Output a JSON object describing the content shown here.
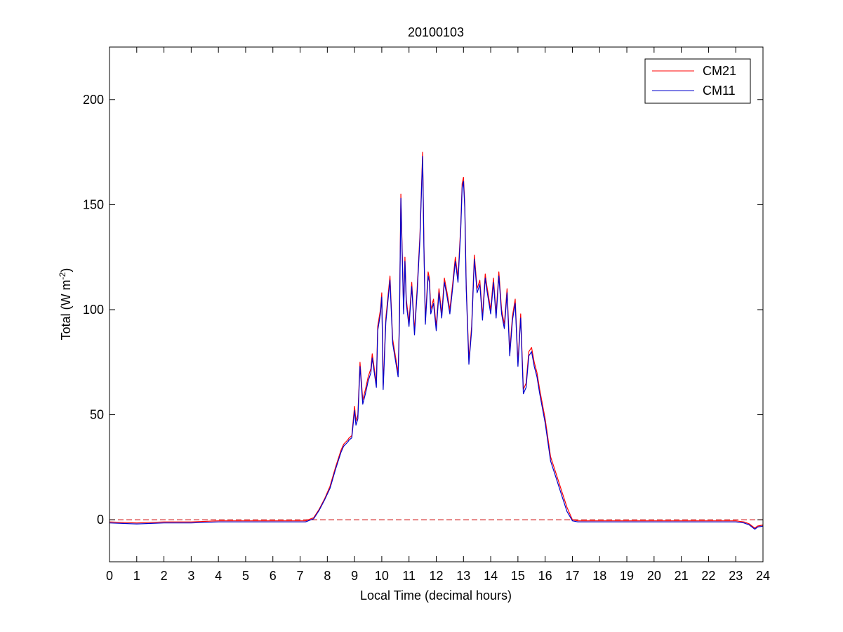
{
  "chart_data": {
    "type": "line",
    "title": "20100103",
    "xlabel": "Local Time (decimal hours)",
    "ylabel": {
      "main": "Total (W m",
      "superscript": "-2",
      "close": ")"
    },
    "xlim": [
      0,
      24
    ],
    "ylim": [
      -20,
      225
    ],
    "xticks": [
      0,
      1,
      2,
      3,
      4,
      5,
      6,
      7,
      8,
      9,
      10,
      11,
      12,
      13,
      14,
      15,
      16,
      17,
      18,
      19,
      20,
      21,
      22,
      23,
      24
    ],
    "yticks": [
      0,
      50,
      100,
      150,
      200
    ],
    "grid": false,
    "legend": {
      "position": "top-right",
      "entries": [
        "CM21",
        "CM11"
      ]
    },
    "reference_line": {
      "y": 0,
      "style": "dashed",
      "color": "#cc0000"
    },
    "series": [
      {
        "name": "CM21",
        "color": "#ff0000",
        "x": [
          0,
          1,
          2,
          3,
          4,
          5,
          6,
          7,
          7.2,
          7.5,
          7.7,
          7.9,
          8.1,
          8.3,
          8.5,
          8.6,
          8.75,
          8.8,
          8.9,
          9.0,
          9.05,
          9.12,
          9.2,
          9.3,
          9.4,
          9.5,
          9.6,
          9.65,
          9.8,
          9.85,
          9.95,
          10.0,
          10.05,
          10.15,
          10.3,
          10.4,
          10.5,
          10.6,
          10.65,
          10.7,
          10.8,
          10.85,
          10.9,
          11.0,
          11.1,
          11.2,
          11.3,
          11.4,
          11.5,
          11.55,
          11.6,
          11.7,
          11.75,
          11.8,
          11.9,
          12.0,
          12.1,
          12.2,
          12.3,
          12.4,
          12.5,
          12.6,
          12.7,
          12.8,
          12.9,
          12.95,
          13.0,
          13.05,
          13.1,
          13.2,
          13.3,
          13.4,
          13.5,
          13.6,
          13.7,
          13.8,
          13.85,
          13.9,
          14.0,
          14.1,
          14.2,
          14.3,
          14.4,
          14.5,
          14.6,
          14.7,
          14.8,
          14.9,
          15.0,
          15.1,
          15.2,
          15.3,
          15.4,
          15.5,
          15.6,
          15.7,
          15.8,
          16.0,
          16.2,
          16.4,
          16.6,
          16.8,
          17.0,
          17.2,
          17.5,
          18,
          19,
          20,
          21,
          22,
          23,
          23.3,
          23.5,
          23.7,
          23.8,
          24
        ],
        "y": [
          -1,
          -1.5,
          -1,
          -1,
          -0.5,
          -0.5,
          -0.5,
          -0.5,
          -0.5,
          1,
          5,
          10,
          16,
          25,
          33,
          36,
          38,
          39,
          40,
          54,
          47,
          50,
          75,
          57,
          62,
          68,
          72,
          79,
          65,
          92,
          100,
          108,
          64,
          96,
          116,
          86,
          78,
          70,
          96,
          155,
          100,
          125,
          105,
          94,
          113,
          90,
          110,
          135,
          175,
          130,
          95,
          118,
          115,
          100,
          105,
          92,
          110,
          98,
          115,
          108,
          100,
          112,
          125,
          115,
          140,
          160,
          163,
          150,
          112,
          76,
          92,
          126,
          110,
          114,
          97,
          117,
          112,
          108,
          100,
          115,
          98,
          118,
          100,
          93,
          110,
          80,
          97,
          105,
          75,
          98,
          62,
          65,
          80,
          82,
          75,
          70,
          62,
          48,
          30,
          22,
          14,
          6,
          0,
          -0.5,
          -0.5,
          -0.5,
          -0.5,
          -0.5,
          -0.5,
          -0.5,
          -0.5,
          -1,
          -2,
          -4,
          -3,
          -2.5
        ]
      },
      {
        "name": "CM11",
        "color": "#0000cc",
        "x": [
          0,
          1,
          2,
          3,
          4,
          5,
          6,
          7,
          7.2,
          7.5,
          7.7,
          7.9,
          8.1,
          8.3,
          8.5,
          8.6,
          8.75,
          8.8,
          8.9,
          9.0,
          9.05,
          9.12,
          9.2,
          9.3,
          9.4,
          9.5,
          9.6,
          9.65,
          9.8,
          9.85,
          9.95,
          10.0,
          10.05,
          10.15,
          10.3,
          10.4,
          10.5,
          10.6,
          10.65,
          10.7,
          10.8,
          10.85,
          10.9,
          11.0,
          11.1,
          11.2,
          11.3,
          11.4,
          11.5,
          11.55,
          11.6,
          11.7,
          11.75,
          11.8,
          11.9,
          12.0,
          12.1,
          12.2,
          12.3,
          12.4,
          12.5,
          12.6,
          12.7,
          12.8,
          12.9,
          12.95,
          13.0,
          13.05,
          13.1,
          13.2,
          13.3,
          13.4,
          13.5,
          13.6,
          13.7,
          13.8,
          13.85,
          13.9,
          14.0,
          14.1,
          14.2,
          14.3,
          14.4,
          14.5,
          14.6,
          14.7,
          14.8,
          14.9,
          15.0,
          15.1,
          15.2,
          15.3,
          15.4,
          15.5,
          15.6,
          15.7,
          15.8,
          16.0,
          16.2,
          16.4,
          16.6,
          16.8,
          17.0,
          17.2,
          17.5,
          18,
          19,
          20,
          21,
          22,
          23,
          23.3,
          23.5,
          23.7,
          23.8,
          24
        ],
        "y": [
          -1.5,
          -2,
          -1.5,
          -1.5,
          -1,
          -1,
          -1,
          -1,
          -1,
          0.5,
          4.5,
          9.5,
          15,
          24,
          32,
          35,
          37,
          38,
          39,
          52,
          45,
          48,
          73,
          55,
          60,
          66,
          70,
          77,
          63,
          90,
          98,
          106,
          62,
          94,
          114,
          84,
          76,
          68,
          94,
          153,
          98,
          123,
          103,
          92,
          111,
          88,
          108,
          133,
          173,
          128,
          93,
          116,
          113,
          98,
          103,
          90,
          108,
          96,
          113,
          106,
          98,
          110,
          123,
          113,
          138,
          158,
          161,
          148,
          110,
          74,
          90,
          124,
          108,
          112,
          95,
          115,
          110,
          106,
          98,
          113,
          96,
          116,
          98,
          91,
          108,
          78,
          95,
          103,
          73,
          96,
          60,
          63,
          78,
          80,
          73,
          68,
          60,
          46,
          28,
          20,
          12,
          4,
          -0.5,
          -1,
          -1,
          -1,
          -1,
          -1,
          -1,
          -1,
          -1,
          -1.5,
          -2.5,
          -4.5,
          -3.5,
          -3
        ]
      }
    ]
  }
}
